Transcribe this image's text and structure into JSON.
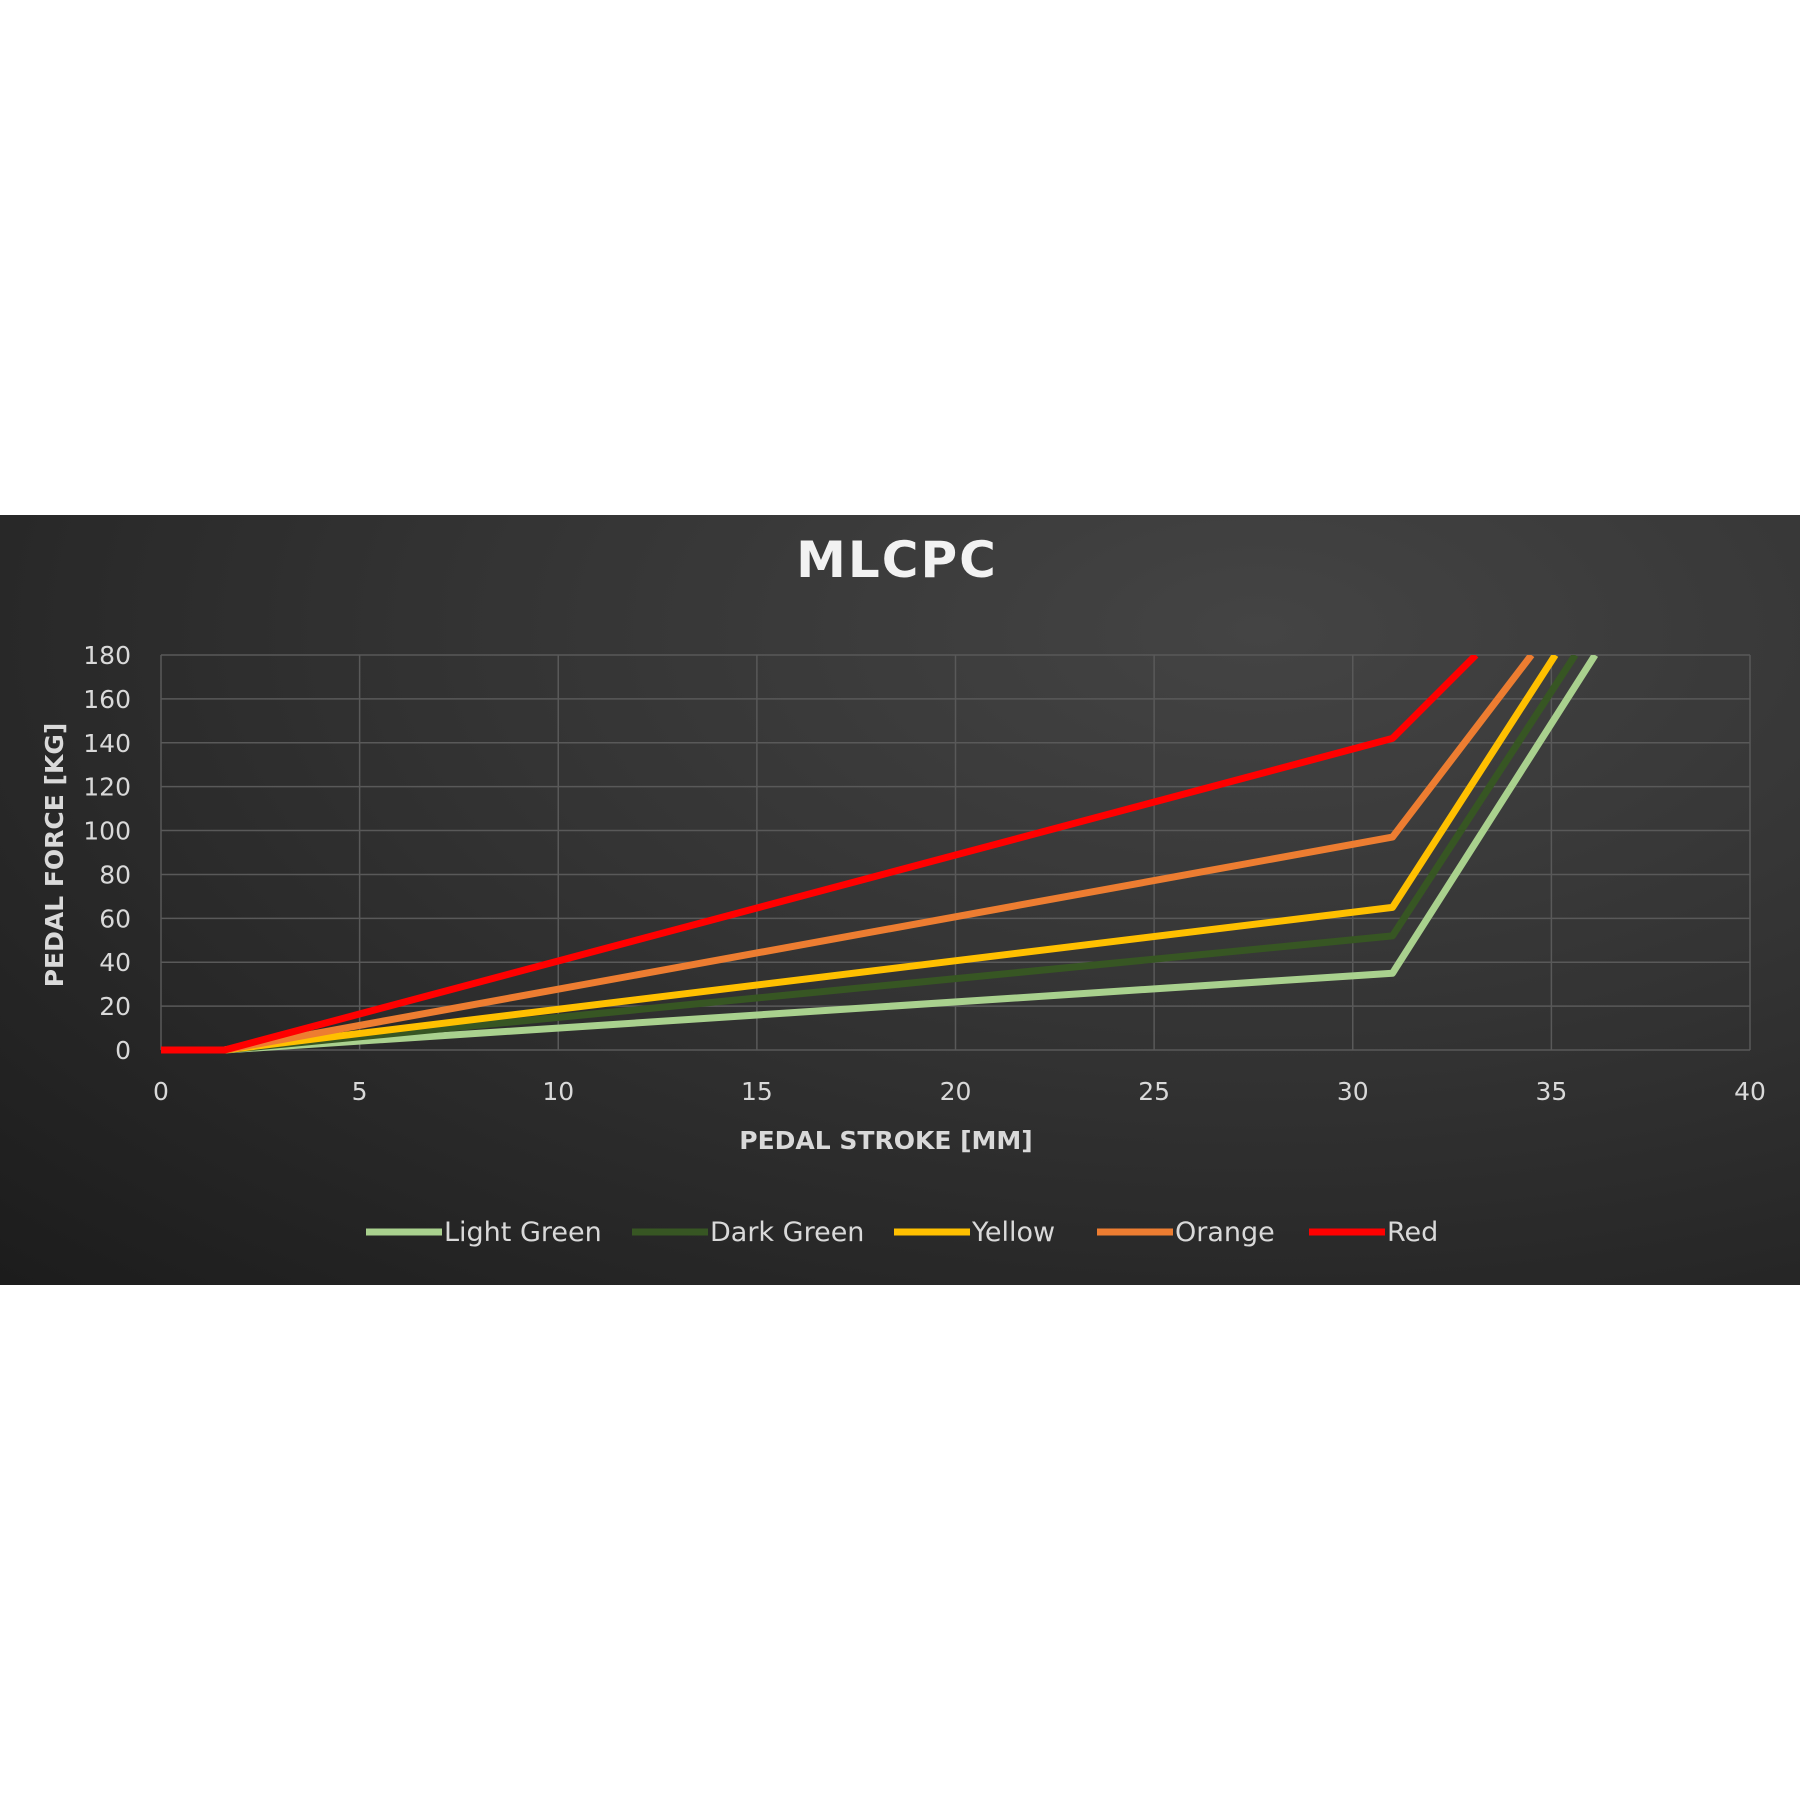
{
  "chart_data": {
    "type": "line",
    "title": "MLCPC",
    "xlabel": "PEDAL STROKE [MM]",
    "ylabel": "PEDAL FORCE [KG]",
    "xlim": [
      0,
      40
    ],
    "ylim": [
      0,
      180
    ],
    "xticks": [
      "0",
      "5",
      "10",
      "15",
      "20",
      "25",
      "30",
      "35",
      "40"
    ],
    "yticks": [
      "0",
      "20",
      "40",
      "60",
      "80",
      "100",
      "120",
      "140",
      "160",
      "180"
    ],
    "grid": true,
    "legend_position": "bottom",
    "series": [
      {
        "name": "Light Green",
        "color": "#a9d18e",
        "points": [
          [
            0,
            0
          ],
          [
            1.6,
            0
          ],
          [
            31,
            35
          ],
          [
            36.1,
            180
          ]
        ]
      },
      {
        "name": "Dark Green",
        "color": "#375623",
        "points": [
          [
            0,
            0
          ],
          [
            1.6,
            0
          ],
          [
            31,
            52
          ],
          [
            35.6,
            180
          ]
        ]
      },
      {
        "name": "Yellow",
        "color": "#ffc000",
        "points": [
          [
            0,
            0
          ],
          [
            1.6,
            0
          ],
          [
            31,
            65
          ],
          [
            35.1,
            180
          ]
        ]
      },
      {
        "name": "Orange",
        "color": "#ed7d31",
        "points": [
          [
            0,
            0
          ],
          [
            1.6,
            0
          ],
          [
            31,
            97
          ],
          [
            34.5,
            180
          ]
        ]
      },
      {
        "name": "Red",
        "color": "#ff0000",
        "points": [
          [
            0,
            0
          ],
          [
            1.6,
            0
          ],
          [
            31,
            142
          ],
          [
            33.1,
            180
          ]
        ]
      }
    ]
  }
}
